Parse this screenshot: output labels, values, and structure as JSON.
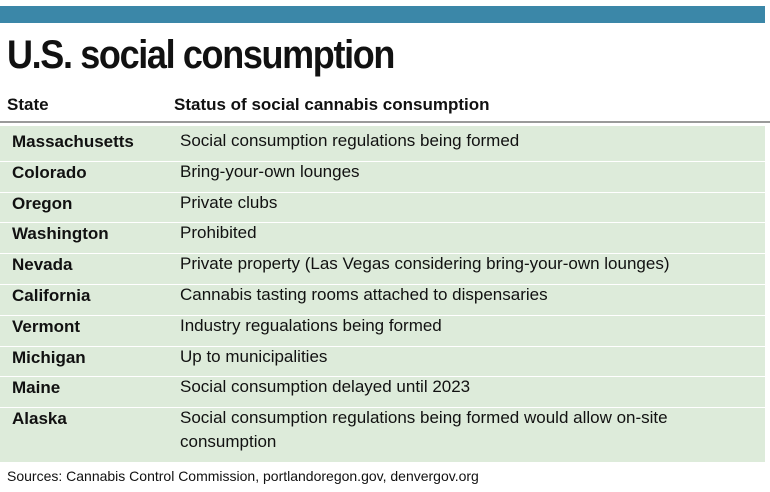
{
  "title": "U.S. social consumption",
  "columns": [
    "State",
    "Status of social cannabis consumption"
  ],
  "chart_data": {
    "type": "table",
    "columns": [
      "State",
      "Status of social cannabis consumption"
    ],
    "rows": [
      [
        "Massachusetts",
        "Social consumption regulations being formed"
      ],
      [
        "Colorado",
        "Bring-your-own lounges"
      ],
      [
        "Oregon",
        "Private clubs"
      ],
      [
        "Washington",
        "Prohibited"
      ],
      [
        "Nevada",
        "Private property (Las Vegas considering bring-your-own lounges)"
      ],
      [
        "California",
        "Cannabis tasting rooms attached to dispensaries"
      ],
      [
        "Vermont",
        "Industry regualations being formed"
      ],
      [
        "Michigan",
        "Up to municipalities"
      ],
      [
        "Maine",
        "Social consumption delayed until 2023"
      ],
      [
        "Alaska",
        "Social consumption regulations being formed would allow on-site consumption"
      ]
    ]
  },
  "source": "Sources: Cannabis Control Commission, portlandoregon.gov, denvergov.org",
  "colors": {
    "bar": "#3b87a8",
    "row_fill": "#ddebda",
    "rule": "#9a9a9a"
  }
}
